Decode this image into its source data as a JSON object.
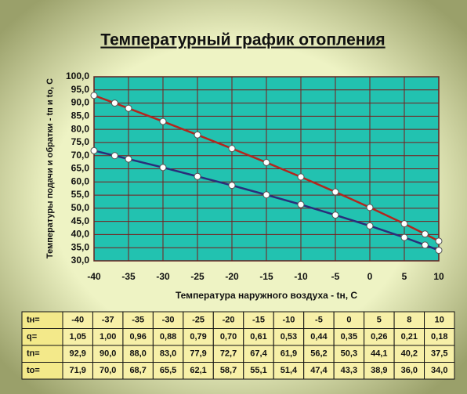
{
  "chart_data": {
    "type": "line",
    "title": "Температурный график отопления",
    "y_label": "Температуры подачи и обратки - tп и to, С",
    "x_label": "Температура наружного воздуха - tн, С",
    "x": [
      -40,
      -37,
      -35,
      -30,
      -25,
      -20,
      -15,
      -10,
      -5,
      0,
      5,
      8,
      10
    ],
    "series": [
      {
        "color": "#b3261e",
        "values": [
          92.9,
          90.0,
          88.0,
          83.0,
          77.9,
          72.7,
          67.4,
          61.9,
          56.2,
          50.3,
          44.1,
          40.2,
          37.5
        ],
        "value_labels": [
          "92,9",
          "90,0",
          "88,0",
          "83,0",
          "77,9",
          "72,7",
          "67,4",
          "61,9",
          "56,2",
          "50,3",
          "44,1",
          "40,2",
          "37,5"
        ]
      },
      {
        "color": "#2a2d7a",
        "values": [
          71.9,
          70.0,
          68.7,
          65.5,
          62.1,
          58.7,
          55.1,
          51.4,
          47.4,
          43.3,
          38.9,
          36.0,
          34.0
        ],
        "value_labels": [
          "71,9",
          "70,0",
          "68,7",
          "65,5",
          "62,1",
          "58,7",
          "55,1",
          "51,4",
          "47,4",
          "43,3",
          "38,9",
          "36,0",
          "34,0"
        ]
      }
    ],
    "xlim": [
      -40,
      10
    ],
    "xticks": [
      -40,
      -35,
      -30,
      -25,
      -20,
      -15,
      -10,
      -5,
      0,
      5,
      10
    ],
    "ylim": [
      30,
      100
    ],
    "yticks": [
      {
        "value": 30,
        "label": "30,0"
      },
      {
        "value": 35,
        "label": "35,0"
      },
      {
        "value": 40,
        "label": "40,0"
      },
      {
        "value": 45,
        "label": "45,0"
      },
      {
        "value": 50,
        "label": "50,0"
      },
      {
        "value": 55,
        "label": "55,0"
      },
      {
        "value": 60,
        "label": "60,0"
      },
      {
        "value": 65,
        "label": "65,0"
      },
      {
        "value": 70,
        "label": "70,0"
      },
      {
        "value": 75,
        "label": "75,0"
      },
      {
        "value": 80,
        "label": "80,0"
      },
      {
        "value": 85,
        "label": "85,0"
      },
      {
        "value": 90,
        "label": "90,0"
      },
      {
        "value": 95,
        "label": "95,0"
      },
      {
        "value": 100,
        "label": "100,0"
      }
    ],
    "grid": true
  },
  "table": {
    "row_labels": [
      "tн=",
      "q=",
      "tп=",
      "tо="
    ],
    "q": [
      "1,05",
      "1,00",
      "0,96",
      "0,88",
      "0,79",
      "0,70",
      "0,61",
      "0,53",
      "0,44",
      "0,35",
      "0,26",
      "0,21",
      "0,18"
    ]
  }
}
